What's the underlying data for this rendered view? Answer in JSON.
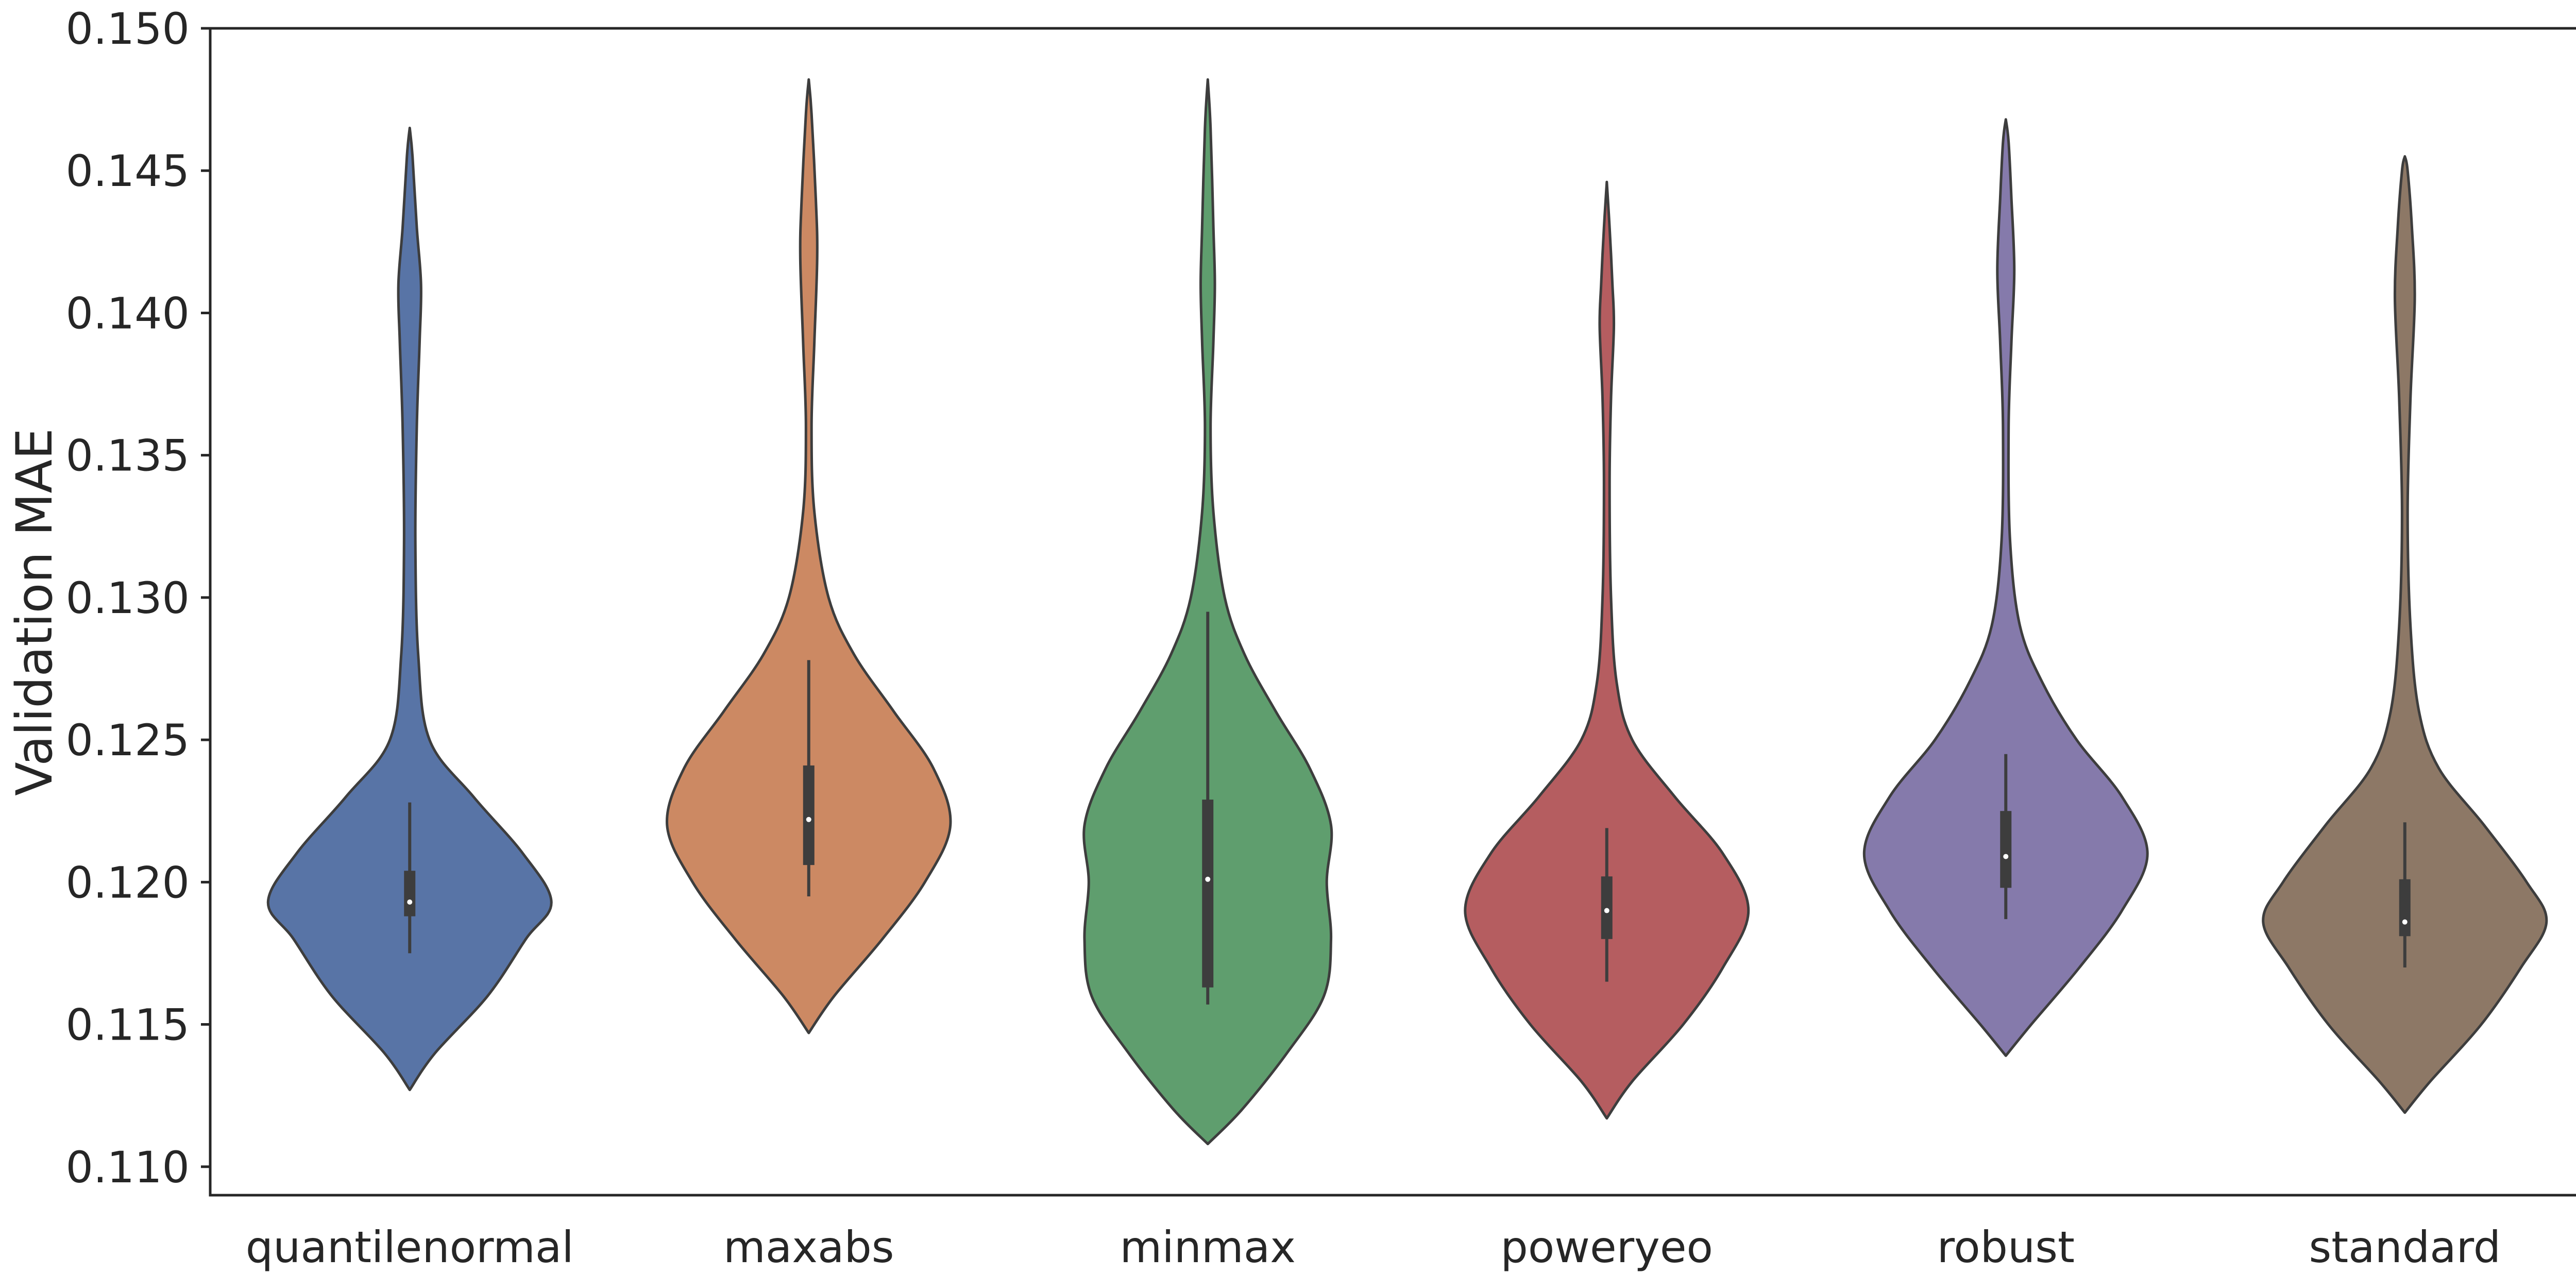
{
  "chart_data": {
    "type": "violin",
    "title": "",
    "xlabel": "",
    "ylabel": "Validation MAE",
    "ylim": [
      0.109,
      0.15
    ],
    "yticks": [
      "0.110",
      "0.115",
      "0.120",
      "0.125",
      "0.130",
      "0.135",
      "0.140",
      "0.145",
      "0.150"
    ],
    "grid": false,
    "legend": "none",
    "categories": [
      "quantilenormal",
      "maxabs",
      "minmax",
      "poweryeo",
      "robust",
      "standard"
    ],
    "series": [
      {
        "category": "quantilenormal",
        "color": "#5874a6",
        "min": 0.1127,
        "max": 0.1465,
        "whisker_low": 0.1175,
        "whisker_high": 0.1228,
        "q1": 0.1188,
        "median": 0.1193,
        "q3": 0.1204,
        "density": [
          [
            0.1127,
            0.0
          ],
          [
            0.114,
            0.18
          ],
          [
            0.116,
            0.55
          ],
          [
            0.118,
            0.82
          ],
          [
            0.1193,
            1.0
          ],
          [
            0.121,
            0.8
          ],
          [
            0.123,
            0.45
          ],
          [
            0.125,
            0.14
          ],
          [
            0.128,
            0.06
          ],
          [
            0.132,
            0.04
          ],
          [
            0.136,
            0.05
          ],
          [
            0.139,
            0.07
          ],
          [
            0.141,
            0.08
          ],
          [
            0.143,
            0.05
          ],
          [
            0.1455,
            0.02
          ],
          [
            0.1465,
            0.0
          ]
        ]
      },
      {
        "category": "maxabs",
        "color": "#cc8963",
        "min": 0.1147,
        "max": 0.1482,
        "whisker_low": 0.1195,
        "whisker_high": 0.1278,
        "q1": 0.1206,
        "median": 0.1222,
        "q3": 0.1241,
        "density": [
          [
            0.1147,
            0.0
          ],
          [
            0.116,
            0.18
          ],
          [
            0.118,
            0.52
          ],
          [
            0.12,
            0.82
          ],
          [
            0.122,
            1.0
          ],
          [
            0.124,
            0.88
          ],
          [
            0.126,
            0.6
          ],
          [
            0.128,
            0.32
          ],
          [
            0.13,
            0.14
          ],
          [
            0.133,
            0.04
          ],
          [
            0.136,
            0.02
          ],
          [
            0.139,
            0.04
          ],
          [
            0.142,
            0.06
          ],
          [
            0.144,
            0.05
          ],
          [
            0.147,
            0.02
          ],
          [
            0.1482,
            0.0
          ]
        ]
      },
      {
        "category": "minmax",
        "color": "#5f9e6e",
        "min": 0.1108,
        "max": 0.1482,
        "whisker_low": 0.1157,
        "whisker_high": 0.1295,
        "q1": 0.1163,
        "median": 0.1201,
        "q3": 0.1229,
        "density": [
          [
            0.1108,
            0.0
          ],
          [
            0.112,
            0.24
          ],
          [
            0.114,
            0.56
          ],
          [
            0.116,
            0.82
          ],
          [
            0.118,
            0.87
          ],
          [
            0.12,
            0.84
          ],
          [
            0.122,
            0.87
          ],
          [
            0.124,
            0.72
          ],
          [
            0.126,
            0.48
          ],
          [
            0.128,
            0.26
          ],
          [
            0.13,
            0.12
          ],
          [
            0.133,
            0.04
          ],
          [
            0.136,
            0.02
          ],
          [
            0.139,
            0.04
          ],
          [
            0.141,
            0.05
          ],
          [
            0.143,
            0.04
          ],
          [
            0.1465,
            0.02
          ],
          [
            0.1482,
            0.0
          ]
        ]
      },
      {
        "category": "poweryeo",
        "color": "#b55d60",
        "min": 0.1117,
        "max": 0.1446,
        "whisker_low": 0.1165,
        "whisker_high": 0.1219,
        "q1": 0.118,
        "median": 0.119,
        "q3": 0.1202,
        "density": [
          [
            0.1117,
            0.0
          ],
          [
            0.113,
            0.18
          ],
          [
            0.115,
            0.54
          ],
          [
            0.117,
            0.82
          ],
          [
            0.119,
            1.0
          ],
          [
            0.121,
            0.82
          ],
          [
            0.123,
            0.48
          ],
          [
            0.125,
            0.18
          ],
          [
            0.127,
            0.07
          ],
          [
            0.13,
            0.03
          ],
          [
            0.134,
            0.02
          ],
          [
            0.137,
            0.03
          ],
          [
            0.1395,
            0.05
          ],
          [
            0.141,
            0.04
          ],
          [
            0.143,
            0.02
          ],
          [
            0.1446,
            0.0
          ]
        ]
      },
      {
        "category": "robust",
        "color": "#857aab",
        "min": 0.1139,
        "max": 0.1468,
        "whisker_low": 0.1187,
        "whisker_high": 0.1245,
        "q1": 0.1198,
        "median": 0.1209,
        "q3": 0.1225,
        "density": [
          [
            0.1139,
            0.0
          ],
          [
            0.115,
            0.18
          ],
          [
            0.117,
            0.52
          ],
          [
            0.119,
            0.82
          ],
          [
            0.121,
            1.0
          ],
          [
            0.123,
            0.82
          ],
          [
            0.125,
            0.5
          ],
          [
            0.127,
            0.26
          ],
          [
            0.129,
            0.1
          ],
          [
            0.132,
            0.03
          ],
          [
            0.136,
            0.02
          ],
          [
            0.139,
            0.04
          ],
          [
            0.1415,
            0.06
          ],
          [
            0.144,
            0.04
          ],
          [
            0.146,
            0.02
          ],
          [
            0.1468,
            0.0
          ]
        ]
      },
      {
        "category": "standard",
        "color": "#8d7866",
        "min": 0.1119,
        "max": 0.1455,
        "whisker_low": 0.117,
        "whisker_high": 0.1221,
        "q1": 0.1181,
        "median": 0.1186,
        "q3": 0.1201,
        "density": [
          [
            0.1119,
            0.0
          ],
          [
            0.113,
            0.18
          ],
          [
            0.115,
            0.54
          ],
          [
            0.117,
            0.82
          ],
          [
            0.1186,
            1.0
          ],
          [
            0.12,
            0.86
          ],
          [
            0.122,
            0.56
          ],
          [
            0.124,
            0.24
          ],
          [
            0.126,
            0.1
          ],
          [
            0.129,
            0.04
          ],
          [
            0.133,
            0.02
          ],
          [
            0.137,
            0.04
          ],
          [
            0.1405,
            0.07
          ],
          [
            0.143,
            0.05
          ],
          [
            0.145,
            0.02
          ],
          [
            0.1455,
            0.0
          ]
        ]
      }
    ]
  }
}
